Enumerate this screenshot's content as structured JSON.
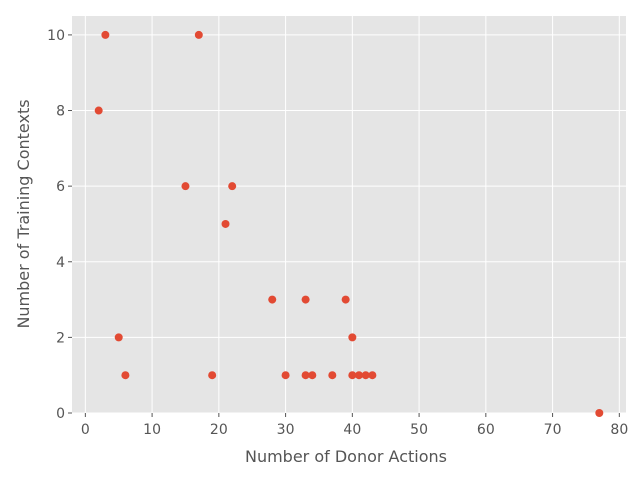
{
  "chart_data": {
    "type": "scatter",
    "xlabel": "Number of Donor Actions",
    "ylabel": "Number of Training Contexts",
    "xlim": [
      -2,
      81
    ],
    "ylim": [
      0,
      10.5
    ],
    "xticks": [
      0,
      10,
      20,
      30,
      40,
      50,
      60,
      70,
      80
    ],
    "yticks": [
      0,
      2,
      4,
      6,
      8,
      10
    ],
    "grid": true,
    "style": "ggplot",
    "colors": {
      "background": "#E5E5E5",
      "grid": "#FFFFFF",
      "marker": "#E24A33",
      "text": "#555555"
    },
    "points": [
      {
        "x": 3,
        "y": 10
      },
      {
        "x": 17,
        "y": 10
      },
      {
        "x": 2,
        "y": 8
      },
      {
        "x": 15,
        "y": 6
      },
      {
        "x": 22,
        "y": 6
      },
      {
        "x": 21,
        "y": 5
      },
      {
        "x": 28,
        "y": 3
      },
      {
        "x": 33,
        "y": 3
      },
      {
        "x": 39,
        "y": 3
      },
      {
        "x": 5,
        "y": 2
      },
      {
        "x": 40,
        "y": 2
      },
      {
        "x": 6,
        "y": 1
      },
      {
        "x": 19,
        "y": 1
      },
      {
        "x": 30,
        "y": 1
      },
      {
        "x": 33,
        "y": 1
      },
      {
        "x": 34,
        "y": 1
      },
      {
        "x": 37,
        "y": 1
      },
      {
        "x": 40,
        "y": 1
      },
      {
        "x": 41,
        "y": 1
      },
      {
        "x": 42,
        "y": 1
      },
      {
        "x": 43,
        "y": 1
      },
      {
        "x": 77,
        "y": 0
      }
    ]
  }
}
